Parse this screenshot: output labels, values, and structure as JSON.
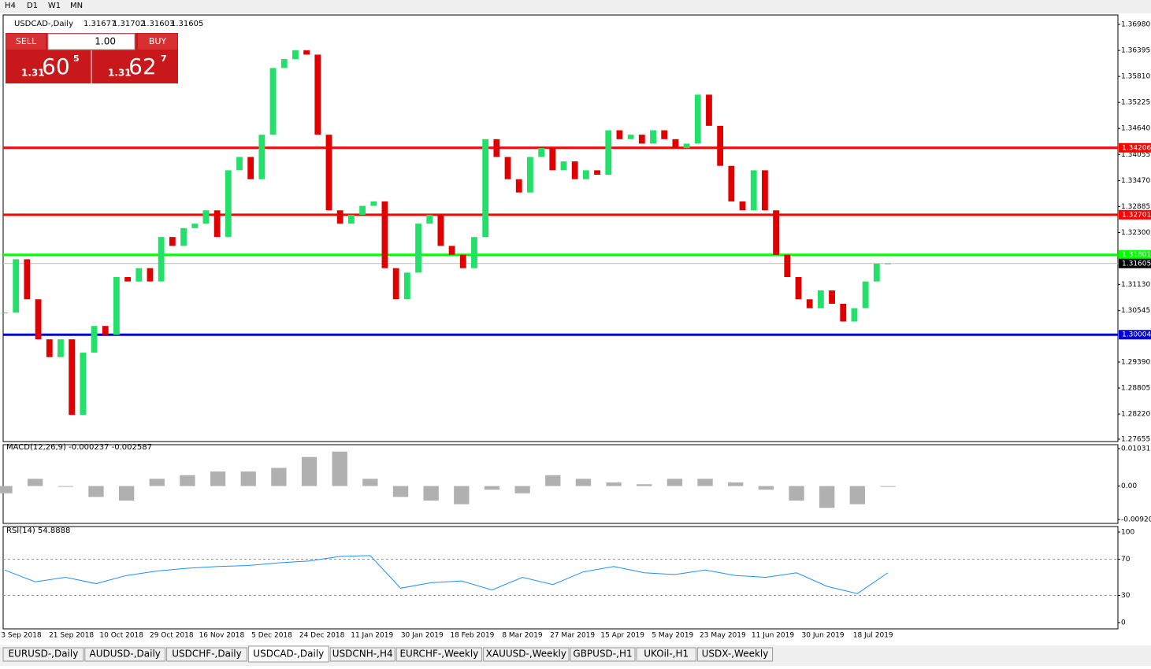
{
  "toolbar": {
    "timeframes": [
      "H4",
      "D1",
      "W1",
      "MN"
    ]
  },
  "chart_header": {
    "symbol": "USDCAD-,Daily",
    "ohlc": [
      "1.31677",
      "1.31702",
      "1.31603",
      "1.31605"
    ]
  },
  "trade_panel": {
    "sell": "SELL",
    "buy": "BUY",
    "lot": "1.00",
    "sell_price": {
      "big": "1.31",
      "pips": "60",
      "point": "5"
    },
    "buy_price": {
      "big": "1.31",
      "pips": "62",
      "point": "7"
    }
  },
  "chart_data": [
    {
      "type": "candlestick",
      "up_color": "#22e06a",
      "down_color": "#e00000",
      "ylim": [
        1.27655,
        1.3698
      ],
      "yticks": [
        {
          "value": 1.3698,
          "label": "1.36980"
        },
        1.36395,
        {
          "value": 1.3581,
          "label": "1.35810"
        },
        1.35225,
        {
          "value": 1.3464,
          "label": "1.34640"
        },
        1.34055,
        {
          "value": 1.3347,
          "label": "1.33470"
        },
        1.32885,
        {
          "value": 1.323,
          "label": "1.32300"
        },
        {
          "value": 1.3113,
          "label": "1.31130"
        },
        1.30545,
        {
          "value": 1.2939,
          "label": "1.29390"
        },
        1.28805,
        {
          "value": 1.2822,
          "label": "1.28220"
        },
        1.27655
      ],
      "values": [
        1.305,
        1.317,
        1.308,
        1.299,
        1.295,
        1.299,
        1.282,
        1.296,
        1.302,
        1.3,
        1.313,
        1.312,
        1.315,
        1.312,
        1.322,
        1.32,
        1.324,
        1.325,
        1.328,
        1.322,
        1.337,
        1.34,
        1.335,
        1.345,
        1.36,
        1.362,
        1.364,
        1.363,
        1.345,
        1.328,
        1.325,
        1.327,
        1.329,
        1.33,
        1.315,
        1.308,
        1.314,
        1.325,
        1.327,
        1.32,
        1.318,
        1.315,
        1.322,
        1.344,
        1.34,
        1.335,
        1.332,
        1.34,
        1.342,
        1.337,
        1.339,
        1.335,
        1.337,
        1.336,
        1.346,
        1.344,
        1.345,
        1.343,
        1.346,
        1.344,
        1.342,
        1.343,
        1.354,
        1.347,
        1.338,
        1.33,
        1.328,
        1.337,
        1.328,
        1.318,
        1.313,
        1.308,
        1.306,
        1.31,
        1.307,
        1.303,
        1.306,
        1.312,
        1.316,
        1.31605
      ],
      "levels": [
        {
          "value": 1.34206,
          "color": "#ff0000"
        },
        {
          "value": 1.32701,
          "color": "#ff0000"
        },
        {
          "value": 1.31801,
          "color": "#00ff00"
        },
        {
          "value": 1.30004,
          "color": "#0000cc"
        }
      ],
      "current": 1.31605,
      "date_labels": [
        "3 Sep 2018",
        "21 Sep 2018",
        "10 Oct 2018",
        "29 Oct 2018",
        "16 Nov 2018",
        "5 Dec 2018",
        "24 Dec 2018",
        "11 Jan 2019",
        "30 Jan 2019",
        "18 Feb 2019",
        "8 Mar 2019",
        "27 Mar 2019",
        "15 Apr 2019",
        "5 May 2019",
        "23 May 2019",
        "11 Jun 2019",
        "30 Jun 2019",
        "18 Jul 2019"
      ]
    },
    {
      "type": "macd",
      "title": "MACD(12,26,9) -0.000237 -0.002587",
      "color": "#b0b0b0",
      "ylim": [
        -0.009203,
        0.010311
      ],
      "yticks": [
        0.010311,
        {
          "value": 0,
          "label": "0.00"
        },
        -0.009203
      ],
      "values": [
        -0.002,
        0.002,
        0,
        -0.003,
        -0.004,
        0.002,
        0.003,
        0.004,
        0.004,
        0.005,
        0.008,
        0.0095,
        0.002,
        -0.003,
        -0.004,
        -0.005,
        -0.001,
        -0.002,
        0.003,
        0.002,
        0.001,
        0.0005,
        0.002,
        0.002,
        0.001,
        -0.001,
        -0.004,
        -0.006,
        -0.005,
        -0.0002
      ]
    },
    {
      "type": "line",
      "title": "RSI(14) 54.8888",
      "color": "#1e90ff",
      "ylim": [
        0,
        100
      ],
      "yticks": [
        100,
        70,
        30,
        0
      ],
      "values": [
        58,
        45,
        50,
        43,
        52,
        57,
        60,
        62,
        63,
        66,
        68,
        73,
        74,
        38,
        44,
        46,
        36,
        50,
        42,
        56,
        62,
        55,
        53,
        58,
        52,
        50,
        55,
        40,
        32,
        55
      ]
    }
  ],
  "tabs": [
    "EURUSD-,Daily",
    "AUDUSD-,Daily",
    "USDCHF-,Daily",
    "USDCAD-,Daily",
    "USDCNH-,H4",
    "EURCHF-,Weekly",
    "XAUUSD-,Weekly",
    "GBPUSD-,H1",
    "UKOil-,H1",
    "USDX-,Weekly"
  ],
  "active_tab": 3
}
